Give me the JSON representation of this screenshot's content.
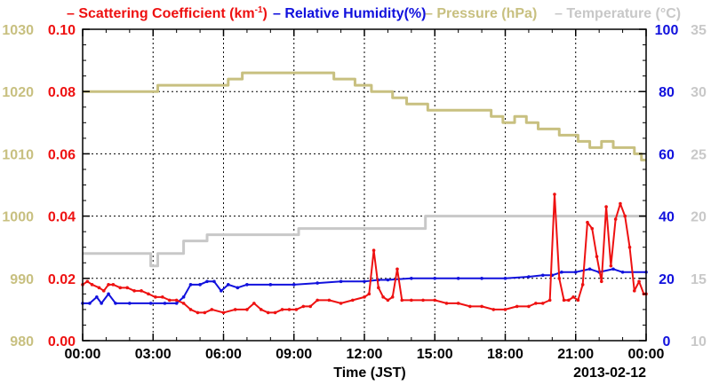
{
  "chart_data": {
    "type": "line",
    "legend": [
      {
        "label": "Scattering Coefficient (km",
        "sup": "-1",
        "suffix": ")",
        "color": "#ee1111"
      },
      {
        "label": "Relative Humidity(%)",
        "color": "#1111dd"
      },
      {
        "label": "Pressure (hPa)",
        "color": "#c8c080"
      },
      {
        "label": "Temperature (°C)",
        "color": "#c8c8c8"
      }
    ],
    "xlabel": "Time (JST)",
    "date_label": "2013-02-12",
    "x_ticks": [
      "00:00",
      "03:00",
      "06:00",
      "09:00",
      "12:00",
      "15:00",
      "18:00",
      "21:00",
      "00:00"
    ],
    "x_unit": "hours",
    "xlim": [
      0,
      24
    ],
    "axes": {
      "pressure": {
        "ticks": [
          "980",
          "990",
          "1000",
          "1010",
          "1020",
          "1030"
        ],
        "lim": [
          980,
          1030
        ],
        "color": "#c8c080"
      },
      "scattering": {
        "ticks": [
          "0.00",
          "0.02",
          "0.04",
          "0.06",
          "0.08",
          "0.10"
        ],
        "lim": [
          0,
          0.1
        ],
        "color": "#ee1111"
      },
      "humidity": {
        "ticks": [
          "0",
          "20",
          "40",
          "60",
          "80",
          "100"
        ],
        "lim": [
          0,
          100
        ],
        "color": "#1111dd"
      },
      "temperature": {
        "ticks": [
          "10",
          "15",
          "20",
          "25",
          "30",
          "35"
        ],
        "lim": [
          10,
          35
        ],
        "color": "#c8c8c8"
      }
    },
    "grid": true,
    "series": [
      {
        "name": "Pressure (hPa)",
        "axis": "pressure",
        "color": "#c8c080",
        "style": "step",
        "x": [
          0,
          2.9,
          3.2,
          5.3,
          6.2,
          6.8,
          9.7,
          10.7,
          11.6,
          12.3,
          13.2,
          13.8,
          14.7,
          15.6,
          17.4,
          17.9,
          18.4,
          18.9,
          19.4,
          20.3,
          21.1,
          21.6,
          22.1,
          22.6,
          23.5,
          23.8,
          24
        ],
        "y": [
          1020,
          1020,
          1021,
          1021,
          1022,
          1023,
          1023,
          1022,
          1021,
          1020,
          1019,
          1018,
          1017,
          1017,
          1016,
          1015,
          1016,
          1015,
          1014,
          1013,
          1012,
          1011,
          1012,
          1011,
          1010,
          1009,
          1009
        ]
      },
      {
        "name": "Temperature (°C)",
        "axis": "temperature",
        "color": "#c8c8c8",
        "style": "step",
        "x": [
          0,
          1.6,
          2.5,
          2.9,
          3.2,
          4.3,
          5.3,
          8.4,
          9.2,
          13.4,
          14.6,
          15.2,
          20.8,
          21.3,
          22.4,
          24
        ],
        "y": [
          17,
          17,
          17,
          16,
          17,
          18,
          18.5,
          18.5,
          19,
          19,
          20,
          20,
          20,
          20,
          20,
          20
        ]
      },
      {
        "name": "Relative Humidity(%)",
        "axis": "humidity",
        "color": "#1111dd",
        "style": "line",
        "x": [
          0,
          0.3,
          0.6,
          0.8,
          1.1,
          1.4,
          2.0,
          2.9,
          3.5,
          4.0,
          4.3,
          4.6,
          5.0,
          5.3,
          5.6,
          5.9,
          6.2,
          6.6,
          7.0,
          8.0,
          9.0,
          10.0,
          11.0,
          12.0,
          12.6,
          13.0,
          14.0,
          15.0,
          16.0,
          17.0,
          18.0,
          19.0,
          19.6,
          20.0,
          20.4,
          21.0,
          21.6,
          22.0,
          22.6,
          23.0,
          24.0
        ],
        "y": [
          12,
          12,
          14,
          12,
          15,
          12,
          12,
          12,
          12,
          12,
          14,
          18,
          18,
          19,
          19,
          16,
          18,
          17,
          18,
          18,
          18,
          18.5,
          19,
          19,
          19.5,
          19.5,
          20,
          20,
          20,
          20,
          20,
          20.5,
          21,
          21,
          22,
          22,
          23,
          22,
          23,
          22,
          22
        ]
      },
      {
        "name": "Scattering Coefficient (km-1)",
        "axis": "scattering",
        "color": "#ee1111",
        "style": "line",
        "x": [
          0,
          0.2,
          0.4,
          0.7,
          0.9,
          1.1,
          1.3,
          1.6,
          1.9,
          2.2,
          2.5,
          2.8,
          3.1,
          3.4,
          3.7,
          4.0,
          4.3,
          4.6,
          4.9,
          5.2,
          5.5,
          6.0,
          6.5,
          7.0,
          7.3,
          7.6,
          7.9,
          8.2,
          8.5,
          8.8,
          9.1,
          9.4,
          9.7,
          10.0,
          10.5,
          11.0,
          11.5,
          12.0,
          12.2,
          12.4,
          12.6,
          12.8,
          13.0,
          13.2,
          13.4,
          13.6,
          14.0,
          14.5,
          15.0,
          15.5,
          16.0,
          16.5,
          17.0,
          17.5,
          18.0,
          18.5,
          19.0,
          19.3,
          19.6,
          19.9,
          20.1,
          20.3,
          20.5,
          20.7,
          20.9,
          21.1,
          21.3,
          21.5,
          21.7,
          21.9,
          22.1,
          22.3,
          22.5,
          22.7,
          22.9,
          23.1,
          23.3,
          23.5,
          23.7,
          23.9,
          24.0
        ],
        "y": [
          0.018,
          0.019,
          0.018,
          0.017,
          0.016,
          0.018,
          0.018,
          0.017,
          0.017,
          0.016,
          0.016,
          0.015,
          0.014,
          0.014,
          0.013,
          0.013,
          0.012,
          0.01,
          0.009,
          0.009,
          0.01,
          0.009,
          0.01,
          0.01,
          0.012,
          0.01,
          0.009,
          0.009,
          0.01,
          0.01,
          0.01,
          0.011,
          0.011,
          0.013,
          0.013,
          0.012,
          0.013,
          0.014,
          0.015,
          0.029,
          0.017,
          0.014,
          0.013,
          0.014,
          0.023,
          0.013,
          0.013,
          0.013,
          0.013,
          0.012,
          0.012,
          0.011,
          0.011,
          0.01,
          0.01,
          0.011,
          0.011,
          0.012,
          0.012,
          0.013,
          0.047,
          0.02,
          0.013,
          0.013,
          0.014,
          0.013,
          0.018,
          0.038,
          0.036,
          0.027,
          0.019,
          0.043,
          0.024,
          0.039,
          0.044,
          0.04,
          0.03,
          0.016,
          0.019,
          0.015,
          0.015
        ]
      }
    ]
  }
}
